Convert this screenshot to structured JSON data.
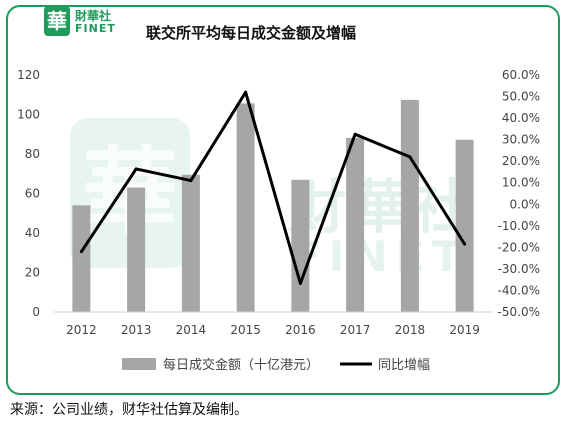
{
  "header": {
    "logo_char": "華",
    "logo_cn": "財華社",
    "logo_en": "FINET"
  },
  "watermark": {
    "cn": "財華社",
    "en": "FINET",
    "char": "華"
  },
  "footer": {
    "source": "来源：公司业绩，财华社估算及编制。"
  },
  "chart_data": {
    "type": "bar",
    "title": "联交所平均每日成交金额及增幅",
    "categories": [
      "2012",
      "2013",
      "2014",
      "2015",
      "2016",
      "2017",
      "2018",
      "2019"
    ],
    "series": [
      {
        "name": "每日成交金额（十亿港元）",
        "type": "bar",
        "axis": "left",
        "color": "#a6a6a6",
        "values": [
          54,
          63,
          69.5,
          105.6,
          66.9,
          88.2,
          107.4,
          87.2
        ]
      },
      {
        "name": "同比增幅",
        "type": "line",
        "axis": "right",
        "color": "#000000",
        "values": [
          -22.0,
          16.4,
          11.0,
          52.0,
          -36.7,
          32.5,
          22.0,
          -18.5
        ]
      }
    ],
    "yleft": {
      "lim": [
        0,
        120
      ],
      "ticks": [
        "0",
        "20",
        "40",
        "60",
        "80",
        "100",
        "120"
      ]
    },
    "yright": {
      "lim": [
        -50,
        60
      ],
      "ticks": [
        "-50.0%",
        "-40.0%",
        "-30.0%",
        "-20.0%",
        "-10.0%",
        "0.0%",
        "10.0%",
        "20.0%",
        "30.0%",
        "40.0%",
        "50.0%",
        "60.0%"
      ]
    },
    "grid": false,
    "legend": "bottom"
  }
}
